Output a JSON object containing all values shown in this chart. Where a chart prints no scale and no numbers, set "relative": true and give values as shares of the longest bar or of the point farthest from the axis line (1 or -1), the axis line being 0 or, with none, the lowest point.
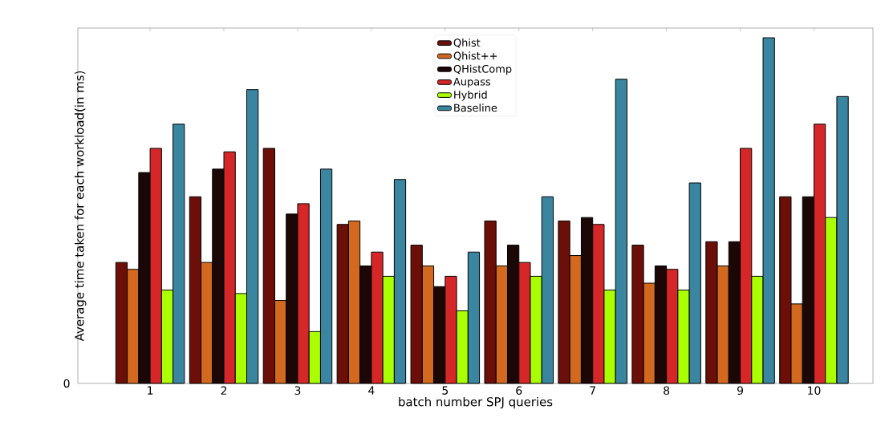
{
  "chart_data": {
    "type": "bar",
    "relative": true,
    "categories": [
      "1",
      "2",
      "3",
      "4",
      "5",
      "6",
      "7",
      "8",
      "9",
      "10"
    ],
    "xlabel": "batch number SPJ queries",
    "ylabel": "Average time taken for each workload(in ms)",
    "annotations": [
      "0"
    ],
    "legend": "top",
    "series": [
      {
        "name": "Qhist",
        "color": "#6b0f08",
        "values": [
          0.35,
          0.54,
          0.68,
          0.46,
          0.4,
          0.47,
          0.47,
          0.4,
          0.41,
          0.54
        ]
      },
      {
        "name": "Qhist++",
        "color": "#d2691e",
        "values": [
          0.33,
          0.35,
          0.24,
          0.47,
          0.34,
          0.34,
          0.37,
          0.29,
          0.34,
          0.23
        ]
      },
      {
        "name": "QHistComp",
        "color": "#1c0707",
        "values": [
          0.61,
          0.62,
          0.49,
          0.34,
          0.28,
          0.4,
          0.48,
          0.34,
          0.41,
          0.54
        ]
      },
      {
        "name": "Aupass",
        "color": "#d62728",
        "values": [
          0.68,
          0.67,
          0.52,
          0.38,
          0.31,
          0.35,
          0.46,
          0.33,
          0.68,
          0.75
        ]
      },
      {
        "name": "Hybrid",
        "color": "#aaff00",
        "values": [
          0.27,
          0.26,
          0.15,
          0.31,
          0.21,
          0.31,
          0.27,
          0.27,
          0.31,
          0.48
        ]
      },
      {
        "name": "Baseline",
        "color": "#3a86a0",
        "values": [
          0.75,
          0.85,
          0.62,
          0.59,
          0.38,
          0.54,
          0.88,
          0.58,
          1,
          0.83
        ]
      }
    ]
  }
}
